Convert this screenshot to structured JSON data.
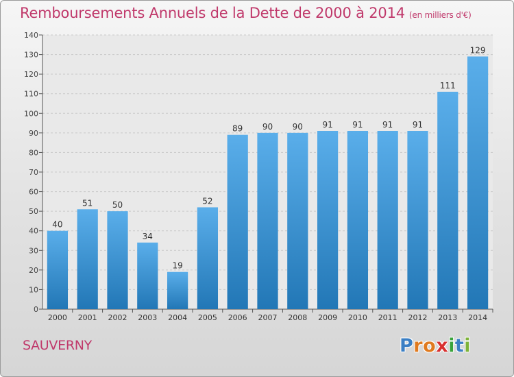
{
  "header": {
    "title": "Remboursements Annuels de la Dette de 2000 à 2014",
    "subtitle": "(en milliers d'€)"
  },
  "footer": {
    "town": "SAUVERNY",
    "logo_letters": [
      "P",
      "r",
      "o",
      "x",
      "i",
      "t",
      "i"
    ]
  },
  "colors": {
    "title": "#c0396b",
    "bar_top": "#5aaeea",
    "bar_bottom": "#2277b6",
    "logo": [
      "#3b7fc4",
      "#e07a1f",
      "#e07a1f",
      "#d8302f",
      "#3aa33c",
      "#3b7fc4",
      "#7db33a"
    ]
  },
  "chart_data": {
    "type": "bar",
    "categories": [
      "2000",
      "2001",
      "2002",
      "2003",
      "2004",
      "2005",
      "2006",
      "2007",
      "2008",
      "2009",
      "2010",
      "2011",
      "2012",
      "2013",
      "2014"
    ],
    "values": [
      40,
      51,
      50,
      34,
      19,
      52,
      89,
      90,
      90,
      91,
      91,
      91,
      91,
      111,
      129
    ],
    "ylim": [
      0,
      140
    ],
    "yticks": [
      0,
      10,
      20,
      30,
      40,
      50,
      60,
      70,
      80,
      90,
      100,
      110,
      120,
      130,
      140
    ],
    "grid": true,
    "data_labels": true
  }
}
